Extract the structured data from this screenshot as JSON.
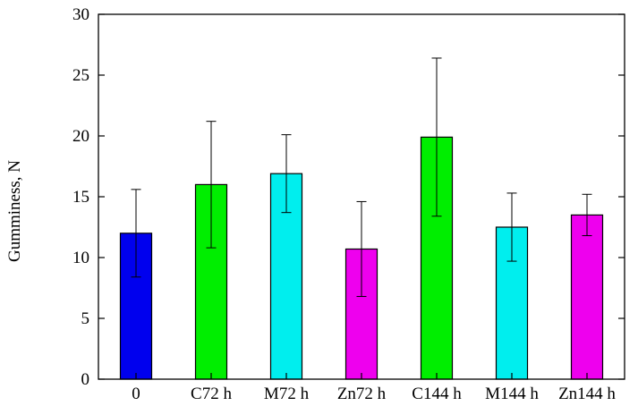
{
  "chart_data": {
    "type": "bar",
    "title": "",
    "xlabel": "",
    "ylabel": "Gumminess, N",
    "categories": [
      "0",
      "C72 h",
      "M72 h",
      "Zn72 h",
      "C144 h",
      "M144 h",
      "Zn144 h"
    ],
    "values": [
      12.0,
      16.0,
      16.9,
      10.7,
      19.9,
      12.5,
      13.5
    ],
    "errors": [
      3.6,
      5.2,
      3.2,
      3.9,
      6.5,
      2.8,
      1.7
    ],
    "colors": [
      "#0000ee",
      "#00ee00",
      "#00eeee",
      "#ee00ee",
      "#00ee00",
      "#00eeee",
      "#ee00ee"
    ],
    "ylim": [
      0,
      30
    ],
    "yticks": [
      0,
      5,
      10,
      15,
      20,
      25,
      30
    ],
    "grid": false,
    "legend": "none"
  }
}
